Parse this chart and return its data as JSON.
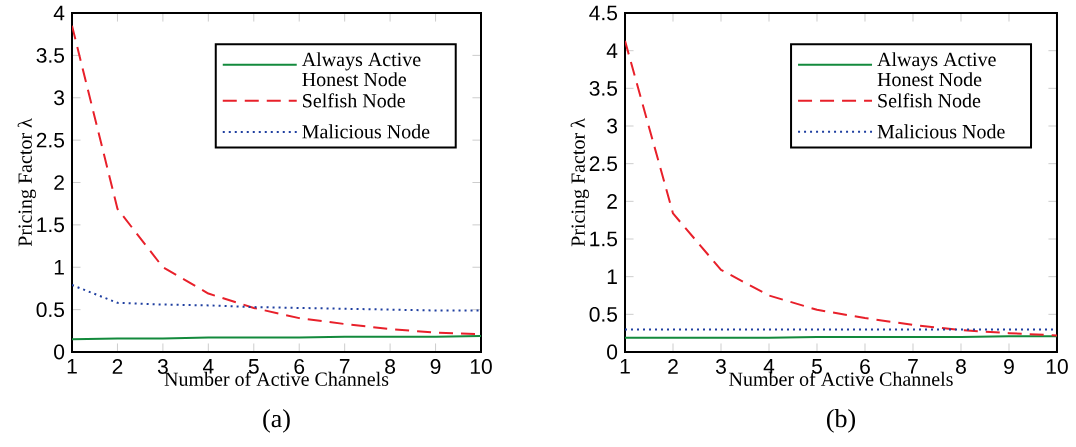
{
  "chart_data": [
    {
      "type": "line",
      "xlabel": "Number of Active Channels",
      "ylabel": "Pricing Factor λ",
      "annotations": [
        "(a)"
      ],
      "legend": "top right",
      "x": [
        1,
        2,
        3,
        4,
        5,
        6,
        7,
        8,
        9,
        10
      ],
      "xlim": [
        1,
        10
      ],
      "xticks": [
        1,
        2,
        3,
        4,
        5,
        6,
        7,
        8,
        9,
        10
      ],
      "ylim": [
        0,
        4
      ],
      "yticks": [
        0,
        0.5,
        1,
        1.5,
        2,
        2.5,
        3,
        3.5,
        4
      ],
      "series": [
        {
          "name": "Always Active Honest Node",
          "color": "#138a3c",
          "line_style": "solid",
          "values": [
            0.15,
            0.16,
            0.16,
            0.17,
            0.17,
            0.17,
            0.18,
            0.18,
            0.18,
            0.19
          ]
        },
        {
          "name": "Selfish Node",
          "color": "#e8202a",
          "line_style": "dashed",
          "values": [
            3.85,
            1.69,
            1.0,
            0.69,
            0.52,
            0.4,
            0.33,
            0.27,
            0.23,
            0.21
          ]
        },
        {
          "name": "Malicious Node",
          "color": "#1f3fa0",
          "line_style": "dotted",
          "values": [
            0.79,
            0.58,
            0.56,
            0.55,
            0.53,
            0.52,
            0.51,
            0.5,
            0.49,
            0.49
          ]
        }
      ]
    },
    {
      "type": "line",
      "xlabel": "Number of Active Channels",
      "ylabel": "Pricing Factor λ",
      "annotations": [
        "(b)"
      ],
      "legend": "top right",
      "x": [
        1,
        2,
        3,
        4,
        5,
        6,
        7,
        8,
        9,
        10
      ],
      "xlim": [
        1,
        10
      ],
      "xticks": [
        1,
        2,
        3,
        4,
        5,
        6,
        7,
        8,
        9,
        10
      ],
      "ylim": [
        0,
        4.5
      ],
      "yticks": [
        0,
        0.5,
        1,
        1.5,
        2,
        2.5,
        3,
        3.5,
        4,
        4.5
      ],
      "series": [
        {
          "name": "Always Active Honest Node",
          "color": "#138a3c",
          "line_style": "solid",
          "values": [
            0.19,
            0.19,
            0.19,
            0.19,
            0.2,
            0.2,
            0.2,
            0.2,
            0.21,
            0.21
          ]
        },
        {
          "name": "Selfish Node",
          "color": "#e8202a",
          "line_style": "dashed",
          "values": [
            4.13,
            1.84,
            1.09,
            0.75,
            0.56,
            0.45,
            0.36,
            0.29,
            0.25,
            0.22
          ]
        },
        {
          "name": "Malicious Node",
          "color": "#1f3fa0",
          "line_style": "dotted",
          "values": [
            0.3,
            0.3,
            0.3,
            0.3,
            0.3,
            0.3,
            0.3,
            0.3,
            0.3,
            0.3
          ]
        }
      ]
    }
  ]
}
